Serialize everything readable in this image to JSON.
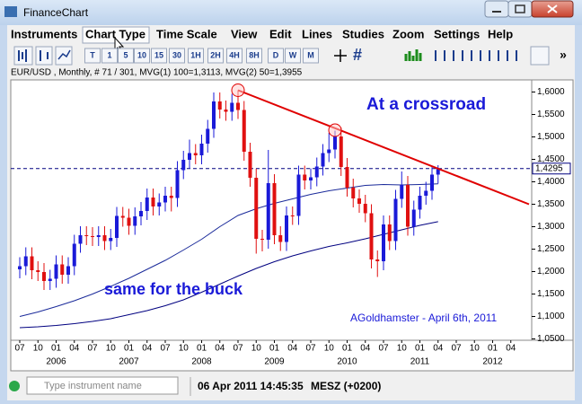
{
  "window": {
    "title": "FinanceChart"
  },
  "menu": [
    "Instruments",
    "Chart Type",
    "Time Scale",
    "View",
    "Edit",
    "Lines",
    "Studies",
    "Zoom",
    "Settings",
    "Help"
  ],
  "toolbar": [
    "T",
    "1",
    "5",
    "10",
    "15",
    "30",
    "1H",
    "2H",
    "4H",
    "8H",
    "D",
    "W",
    "M"
  ],
  "chart_info": "EUR/USD , Monthly, # 71 / 301, MVG(1) 100=1,3113, MVG(2) 50=1,3955",
  "status": {
    "placeholder": "Type instrument name",
    "datetime": "06 Apr 2011 14:45:35",
    "timezone": "MESZ (+0200)"
  },
  "chart_data": {
    "type": "candlestick",
    "x": [
      "2005-07",
      "2005-08",
      "2005-09",
      "2005-10",
      "2005-11",
      "2005-12",
      "2006-01",
      "2006-02",
      "2006-03",
      "2006-04",
      "2006-05",
      "2006-06",
      "2006-07",
      "2006-08",
      "2006-09",
      "2006-10",
      "2006-11",
      "2006-12",
      "2007-01",
      "2007-02",
      "2007-03",
      "2007-04",
      "2007-05",
      "2007-06",
      "2007-07",
      "2007-08",
      "2007-09",
      "2007-10",
      "2007-11",
      "2007-12",
      "2008-01",
      "2008-02",
      "2008-03",
      "2008-04",
      "2008-05",
      "2008-06",
      "2008-07",
      "2008-08",
      "2008-09",
      "2008-10",
      "2008-11",
      "2008-12",
      "2009-01",
      "2009-02",
      "2009-03",
      "2009-04",
      "2009-05",
      "2009-06",
      "2009-07",
      "2009-08",
      "2009-09",
      "2009-10",
      "2009-11",
      "2009-12",
      "2010-01",
      "2010-02",
      "2010-03",
      "2010-04",
      "2010-05",
      "2010-06",
      "2010-07",
      "2010-08",
      "2010-09",
      "2010-10",
      "2010-11",
      "2010-12",
      "2011-01",
      "2011-02",
      "2011-03",
      "2011-04"
    ],
    "open": [
      1.205,
      1.212,
      1.234,
      1.203,
      1.199,
      1.179,
      1.184,
      1.216,
      1.193,
      1.212,
      1.262,
      1.281,
      1.279,
      1.277,
      1.281,
      1.268,
      1.275,
      1.324,
      1.32,
      1.302,
      1.323,
      1.335,
      1.365,
      1.345,
      1.354,
      1.369,
      1.364,
      1.426,
      1.449,
      1.464,
      1.459,
      1.485,
      1.518,
      1.579,
      1.561,
      1.556,
      1.576,
      1.56,
      1.467,
      1.409,
      1.273,
      1.271,
      1.397,
      1.281,
      1.266,
      1.325,
      1.324,
      1.416,
      1.403,
      1.41,
      1.434,
      1.464,
      1.472,
      1.501,
      1.433,
      1.387,
      1.363,
      1.351,
      1.33,
      1.227,
      1.223,
      1.305,
      1.268,
      1.362,
      1.393,
      1.3,
      1.338,
      1.369,
      1.38,
      1.416
    ],
    "high": [
      1.232,
      1.254,
      1.254,
      1.223,
      1.219,
      1.204,
      1.236,
      1.236,
      1.232,
      1.282,
      1.301,
      1.301,
      1.299,
      1.301,
      1.301,
      1.295,
      1.344,
      1.344,
      1.34,
      1.343,
      1.355,
      1.385,
      1.385,
      1.374,
      1.389,
      1.389,
      1.446,
      1.469,
      1.494,
      1.484,
      1.505,
      1.538,
      1.599,
      1.599,
      1.581,
      1.596,
      1.604,
      1.58,
      1.487,
      1.429,
      1.293,
      1.471,
      1.417,
      1.301,
      1.345,
      1.345,
      1.436,
      1.436,
      1.43,
      1.454,
      1.484,
      1.509,
      1.514,
      1.521,
      1.453,
      1.407,
      1.383,
      1.371,
      1.35,
      1.247,
      1.325,
      1.325,
      1.382,
      1.423,
      1.413,
      1.358,
      1.389,
      1.4,
      1.436,
      1.437
    ],
    "low": [
      1.185,
      1.192,
      1.183,
      1.179,
      1.159,
      1.159,
      1.164,
      1.173,
      1.173,
      1.192,
      1.242,
      1.259,
      1.257,
      1.257,
      1.248,
      1.248,
      1.255,
      1.3,
      1.282,
      1.282,
      1.303,
      1.315,
      1.325,
      1.325,
      1.334,
      1.334,
      1.344,
      1.406,
      1.429,
      1.439,
      1.439,
      1.465,
      1.498,
      1.541,
      1.536,
      1.536,
      1.54,
      1.447,
      1.389,
      1.24,
      1.245,
      1.251,
      1.261,
      1.246,
      1.246,
      1.304,
      1.304,
      1.383,
      1.383,
      1.39,
      1.414,
      1.444,
      1.452,
      1.413,
      1.367,
      1.343,
      1.331,
      1.31,
      1.207,
      1.188,
      1.203,
      1.248,
      1.248,
      1.342,
      1.28,
      1.28,
      1.318,
      1.349,
      1.36,
      1.396
    ],
    "close": [
      1.212,
      1.234,
      1.203,
      1.199,
      1.179,
      1.184,
      1.216,
      1.193,
      1.212,
      1.262,
      1.281,
      1.279,
      1.277,
      1.281,
      1.268,
      1.275,
      1.324,
      1.32,
      1.302,
      1.323,
      1.335,
      1.365,
      1.345,
      1.354,
      1.369,
      1.364,
      1.426,
      1.449,
      1.464,
      1.459,
      1.485,
      1.518,
      1.579,
      1.561,
      1.556,
      1.576,
      1.56,
      1.467,
      1.409,
      1.273,
      1.271,
      1.397,
      1.281,
      1.266,
      1.325,
      1.324,
      1.416,
      1.403,
      1.41,
      1.434,
      1.464,
      1.472,
      1.501,
      1.433,
      1.387,
      1.363,
      1.351,
      1.33,
      1.227,
      1.223,
      1.305,
      1.268,
      1.362,
      1.393,
      1.3,
      1.338,
      1.369,
      1.38,
      1.416,
      1.4295
    ],
    "up_color": "#1a1ad8",
    "down_color": "#e01010",
    "moving_averages": [
      {
        "color": "#000080",
        "x": [
          "2005-07",
          "2005-10",
          "2006-01",
          "2006-04",
          "2006-07",
          "2006-10",
          "2007-01",
          "2007-04",
          "2007-07",
          "2007-10",
          "2008-01",
          "2008-04",
          "2008-07",
          "2008-10",
          "2009-01",
          "2009-04",
          "2009-07",
          "2009-10",
          "2010-01",
          "2010-04",
          "2010-07",
          "2010-10",
          "2011-01",
          "2011-04"
        ],
        "values": [
          1.075,
          1.077,
          1.08,
          1.084,
          1.089,
          1.095,
          1.104,
          1.113,
          1.124,
          1.137,
          1.154,
          1.172,
          1.19,
          1.207,
          1.222,
          1.235,
          1.246,
          1.256,
          1.264,
          1.273,
          1.283,
          1.293,
          1.303,
          1.3113
        ]
      },
      {
        "color": "#1a2a9a",
        "x": [
          "2005-07",
          "2005-10",
          "2006-01",
          "2006-04",
          "2006-07",
          "2006-10",
          "2007-01",
          "2007-04",
          "2007-07",
          "2007-10",
          "2008-01",
          "2008-04",
          "2008-07",
          "2008-10",
          "2009-01",
          "2009-04",
          "2009-07",
          "2009-10",
          "2010-01",
          "2010-04",
          "2010-07",
          "2010-10",
          "2011-01",
          "2011-04"
        ],
        "values": [
          1.1,
          1.11,
          1.122,
          1.135,
          1.15,
          1.167,
          1.185,
          1.205,
          1.225,
          1.248,
          1.272,
          1.3,
          1.325,
          1.34,
          1.352,
          1.362,
          1.372,
          1.38,
          1.386,
          1.392,
          1.394,
          1.393,
          1.394,
          1.3955
        ]
      }
    ],
    "trend_line": {
      "x": [
        "2008-07",
        "2012-07"
      ],
      "values": [
        1.604,
        1.35
      ],
      "color": "#e00000"
    },
    "markers": {
      "x": [
        "2008-07",
        "2009-11"
      ],
      "values": [
        1.604,
        1.515
      ],
      "color": "#e00000"
    },
    "price_line": {
      "value": 1.4295,
      "label": "1,4295",
      "color": "#000080"
    },
    "annotations": [
      "At a crossroad",
      "same for the buck",
      "AGoldhamster - April 6th, 2011"
    ],
    "xlim": [
      "2005-06",
      "2012-07"
    ],
    "ylim": [
      1.05,
      1.625
    ],
    "yticks": [
      {
        "value": 1.05,
        "label": "1,0500"
      },
      {
        "value": 1.1,
        "label": "1,1000"
      },
      {
        "value": 1.15,
        "label": "1,1500"
      },
      {
        "value": 1.2,
        "label": "1,2000"
      },
      {
        "value": 1.25,
        "label": "1,2500"
      },
      {
        "value": 1.3,
        "label": "1,3000"
      },
      {
        "value": 1.35,
        "label": "1,3500"
      },
      {
        "value": 1.4,
        "label": "1,4000"
      },
      {
        "value": 1.45,
        "label": "1,4500"
      },
      {
        "value": 1.5,
        "label": "1,5000"
      },
      {
        "value": 1.55,
        "label": "1,5500"
      },
      {
        "value": 1.6,
        "label": "1,6000"
      }
    ],
    "xticks": [
      {
        "value": "2005-07",
        "label": "07"
      },
      {
        "value": "2005-10",
        "label": "10"
      },
      {
        "value": "2006-01",
        "label": "01"
      },
      {
        "value": "2006-04",
        "label": "04"
      },
      {
        "value": "2006-07",
        "label": "07"
      },
      {
        "value": "2006-10",
        "label": "10"
      },
      {
        "value": "2007-01",
        "label": "01"
      },
      {
        "value": "2007-04",
        "label": "04"
      },
      {
        "value": "2007-07",
        "label": "07"
      },
      {
        "value": "2007-10",
        "label": "10"
      },
      {
        "value": "2008-01",
        "label": "01"
      },
      {
        "value": "2008-04",
        "label": "04"
      },
      {
        "value": "2008-07",
        "label": "07"
      },
      {
        "value": "2008-10",
        "label": "10"
      },
      {
        "value": "2009-01",
        "label": "01"
      },
      {
        "value": "2009-04",
        "label": "04"
      },
      {
        "value": "2009-07",
        "label": "07"
      },
      {
        "value": "2009-10",
        "label": "10"
      },
      {
        "value": "2010-01",
        "label": "01"
      },
      {
        "value": "2010-04",
        "label": "04"
      },
      {
        "value": "2010-07",
        "label": "07"
      },
      {
        "value": "2010-10",
        "label": "10"
      },
      {
        "value": "2011-01",
        "label": "01"
      },
      {
        "value": "2011-04",
        "label": "04"
      },
      {
        "value": "2011-07",
        "label": "07"
      },
      {
        "value": "2011-10",
        "label": "10"
      },
      {
        "value": "2012-01",
        "label": "01"
      },
      {
        "value": "2012-04",
        "label": "04"
      }
    ],
    "year_ticks": [
      {
        "value": "2006-01",
        "label": "2006"
      },
      {
        "value": "2007-01",
        "label": "2007"
      },
      {
        "value": "2008-01",
        "label": "2008"
      },
      {
        "value": "2009-01",
        "label": "2009"
      },
      {
        "value": "2010-01",
        "label": "2010"
      },
      {
        "value": "2011-01",
        "label": "2011"
      },
      {
        "value": "2012-01",
        "label": "2012"
      }
    ]
  }
}
